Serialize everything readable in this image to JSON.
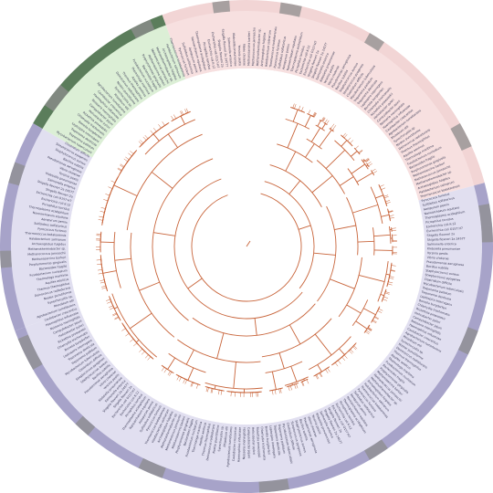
{
  "figure": {
    "type": "circular phylogenetic tree",
    "colors": {
      "background": "#ffffff",
      "branch": "#c8643a",
      "leaf_line": "#c9c9c9",
      "label": "#3a3a55",
      "clade_purple": "#e1dff0",
      "clade_pink": "#f7e0e0",
      "clade_green": "#dcefd6",
      "ring_purple": "#a7a3c9",
      "ring_pink": "#f2d5d5",
      "ring_dark": "#8e8e8e",
      "ring_green": "#5b7d5b"
    }
  },
  "clades": [
    {
      "name": "clade-pink",
      "color": "#f7e0e0",
      "ring": "#f2d5d5",
      "from_deg": -90,
      "to_deg": -15
    },
    {
      "name": "clade-purple-major",
      "color": "#e1dff0",
      "ring": "#a7a3c9",
      "from_deg": -15,
      "to_deg": 160
    },
    {
      "name": "clade-purple-left",
      "color": "#e1dff0",
      "ring": "#a7a3c9",
      "from_deg": 160,
      "to_deg": 210
    },
    {
      "name": "clade-green",
      "color": "#dcefd6",
      "ring": "#5b7d5b",
      "from_deg": 210,
      "to_deg": 250
    },
    {
      "name": "clade-pink-top",
      "color": "#f7e0e0",
      "ring": "#f2d5d5",
      "from_deg": 250,
      "to_deg": 270
    }
  ],
  "leaf_labels": [
    "Methanosarcina barkeri",
    "Methanococcus jannaschii",
    "Methanothermobacter sp.",
    "Archaeoglobus fulgidus",
    "Halobacterium salinarum",
    "Thermococcus kodakarensis",
    "Pyrococcus furiosus",
    "Sulfolobus solfataricus",
    "Aeropyrum pernix",
    "Nanoarchaeum equitans",
    "Thermoplasma acidophilum",
    "Picrophilus torridus",
    "Escherichia coli K-12",
    "Escherichia coli O157:H7",
    "Shigella flexneri 2a",
    "Shigella flexneri 2a 2457T",
    "Salmonella enterica",
    "Klebsiella pneumoniae",
    "Yersinia pestis",
    "Vibrio cholerae",
    "Pseudomonas aeruginosa",
    "Bacillus subtilis",
    "Staphylococcus aureus",
    "Streptococcus pyogenes",
    "Clostridium difficile",
    "Mycobacterium tuberculosis",
    "Treponema pallidum",
    "Treponema denticola",
    "Leptospira interrogans",
    "Borrelia burgdorferi",
    "Chlamydia trachomatis",
    "Rickettsia prowazekii",
    "Helicobacter pylori",
    "Campylobacter jejuni",
    "Neisseria meningitidis",
    "Haemophilus influenzae",
    "Caulobacter crescentus",
    "Agrobacterium tumefaciens",
    "Rhizobium etli",
    "Synechocystis sp.",
    "Nostoc punctiforme",
    "Deinococcus radiodurans",
    "Thermus thermophilus",
    "Aquifex aeolicus",
    "Thermotoga maritima",
    "Fusobacterium nucleatum",
    "Bacteroides fragilis",
    "Porphyromonas gingivalis"
  ]
}
